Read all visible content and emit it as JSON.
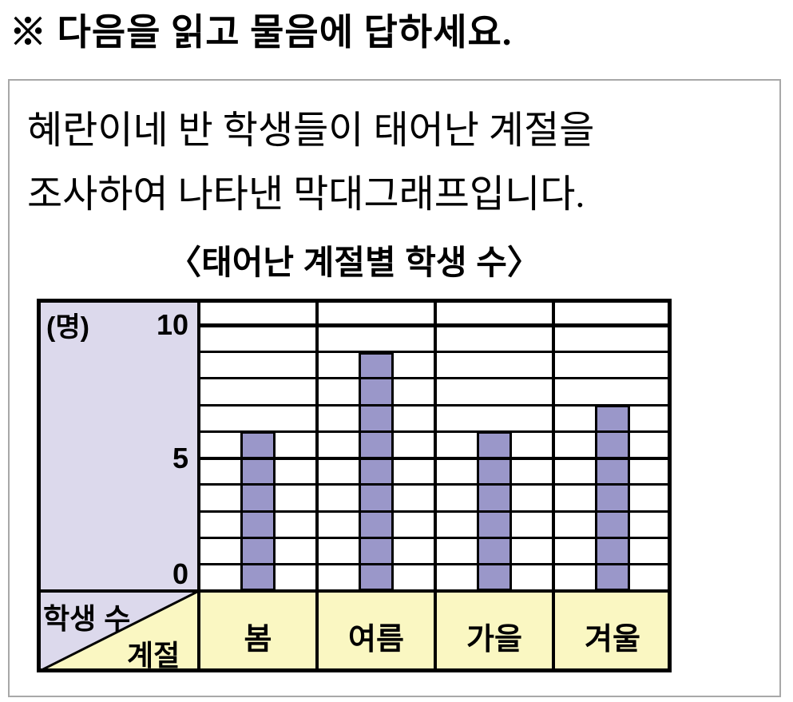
{
  "page": {
    "instruction": "※ 다음을 읽고 물음에 답하세요.",
    "description_line1": "혜란이네 반 학생들이 태어난 계절을",
    "description_line2": "조사하여 나타낸 막대그래프입니다."
  },
  "chart_data": {
    "type": "bar",
    "title": "〈태어난 계절별 학생 수〉",
    "unit_label": "(명)",
    "corner_row_header": "학생 수",
    "corner_col_header": "계절",
    "categories": [
      "봄",
      "여름",
      "가을",
      "겨울"
    ],
    "category_names_en": [
      "spring",
      "summer",
      "fall",
      "winter"
    ],
    "values": [
      6,
      9,
      6,
      7
    ],
    "y_ticks": [
      0,
      5,
      10
    ],
    "ylim": [
      0,
      11
    ],
    "grid": "on",
    "legend": "none",
    "colors": {
      "bar_fill": "#9a97c9",
      "axis_header_bg": "#dcd9ec",
      "category_row_bg": "#faf7c2",
      "grid_line": "#000000",
      "outer_box_border": "#a8a8a8"
    }
  }
}
